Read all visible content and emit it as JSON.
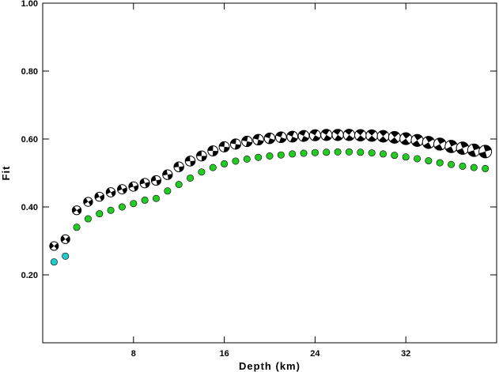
{
  "chart_data": {
    "type": "scatter",
    "xlabel": "Depth (km)",
    "ylabel": "Fit",
    "xlim": [
      0,
      40
    ],
    "ylim": [
      0,
      1
    ],
    "x_ticks": [
      8,
      16,
      24,
      32
    ],
    "x_tick_labels": [
      "8",
      "16",
      "24",
      "32"
    ],
    "y_ticks": [
      0.2,
      0.4,
      0.6,
      0.8,
      1.0
    ],
    "y_tick_labels": [
      "0.20",
      "0.40",
      "0.60",
      "0.80",
      "1.00"
    ],
    "grid": false,
    "series": [
      {
        "marker": "beachball",
        "color": "#000000",
        "x": [
          1,
          2,
          3,
          4,
          5,
          6,
          7,
          8,
          9,
          10,
          11,
          12,
          13,
          14,
          15,
          16,
          17,
          18,
          19,
          20,
          21,
          22,
          23,
          24,
          25,
          26,
          27,
          28,
          29,
          30,
          31,
          32,
          33,
          34,
          35,
          36,
          37,
          38,
          39
        ],
        "y": [
          0.285,
          0.305,
          0.39,
          0.415,
          0.43,
          0.443,
          0.452,
          0.46,
          0.47,
          0.478,
          0.495,
          0.518,
          0.535,
          0.55,
          0.565,
          0.577,
          0.585,
          0.593,
          0.598,
          0.602,
          0.605,
          0.607,
          0.609,
          0.611,
          0.612,
          0.612,
          0.612,
          0.611,
          0.61,
          0.608,
          0.605,
          0.601,
          0.596,
          0.59,
          0.585,
          0.578,
          0.573,
          0.567,
          0.563
        ]
      },
      {
        "marker": "circle",
        "colors": [
          "#22cccc",
          "#22cc22"
        ],
        "x": [
          1,
          2,
          3,
          4,
          5,
          6,
          7,
          8,
          9,
          10,
          11,
          12,
          13,
          14,
          15,
          16,
          17,
          18,
          19,
          20,
          21,
          22,
          23,
          24,
          25,
          26,
          27,
          28,
          29,
          30,
          31,
          32,
          33,
          34,
          35,
          36,
          37,
          38,
          39
        ],
        "y": [
          0.238,
          0.255,
          0.34,
          0.365,
          0.38,
          0.39,
          0.4,
          0.41,
          0.42,
          0.425,
          0.447,
          0.466,
          0.485,
          0.503,
          0.516,
          0.527,
          0.535,
          0.541,
          0.546,
          0.55,
          0.553,
          0.556,
          0.558,
          0.56,
          0.561,
          0.562,
          0.562,
          0.561,
          0.559,
          0.556,
          0.552,
          0.547,
          0.542,
          0.536,
          0.53,
          0.525,
          0.52,
          0.516,
          0.513
        ]
      }
    ]
  }
}
